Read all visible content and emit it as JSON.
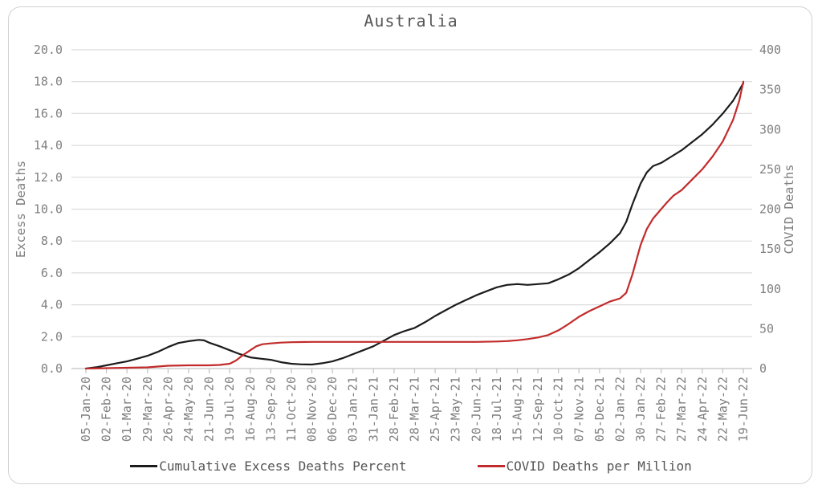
{
  "chart_data": {
    "type": "line",
    "title": "Australia",
    "categories": [
      "05-Jan-20",
      "02-Feb-20",
      "01-Mar-20",
      "29-Mar-20",
      "26-Apr-20",
      "24-May-20",
      "21-Jun-20",
      "19-Jul-20",
      "16-Aug-20",
      "13-Sep-20",
      "11-Oct-20",
      "08-Nov-20",
      "06-Dec-20",
      "03-Jan-21",
      "31-Jan-21",
      "28-Feb-21",
      "28-Mar-21",
      "25-Apr-21",
      "23-May-21",
      "20-Jun-21",
      "18-Jul-21",
      "15-Aug-21",
      "12-Sep-21",
      "10-Oct-21",
      "07-Nov-21",
      "05-Dec-21",
      "02-Jan-22",
      "30-Jan-22",
      "27-Feb-22",
      "27-Mar-22",
      "24-Apr-22",
      "22-May-22",
      "19-Jun-22"
    ],
    "x_tick_rotation": -90,
    "grid": true,
    "legend_position": "bottom",
    "left_axis": {
      "label": "Excess Deaths",
      "lim": [
        0,
        20
      ],
      "tick_values": [
        0,
        2,
        4,
        6,
        8,
        10,
        12,
        14,
        16,
        18,
        20
      ],
      "tick_labels": [
        "0.0",
        "2.0",
        "4.0",
        "6.0",
        "8.0",
        "10.0",
        "12.0",
        "14.0",
        "16.0",
        "18.0",
        "20.0"
      ]
    },
    "right_axis": {
      "label": "COVID Deaths",
      "lim": [
        0,
        400
      ],
      "tick_values": [
        0,
        50,
        100,
        150,
        200,
        250,
        300,
        350,
        400
      ],
      "tick_labels": [
        "0",
        "50",
        "100",
        "150",
        "200",
        "250",
        "300",
        "350",
        "400"
      ]
    },
    "series": [
      {
        "name": "Cumulative Excess Deaths Percent",
        "key": "cumulative-excess-deaths-percent",
        "axis": "left",
        "color": "#1c1c1c",
        "points": [
          [
            0,
            0
          ],
          [
            0.5,
            0.08
          ],
          [
            1,
            0.2
          ],
          [
            1.5,
            0.33
          ],
          [
            2,
            0.45
          ],
          [
            2.5,
            0.62
          ],
          [
            3,
            0.8
          ],
          [
            3.5,
            1.05
          ],
          [
            4,
            1.35
          ],
          [
            4.5,
            1.6
          ],
          [
            5,
            1.72
          ],
          [
            5.5,
            1.8
          ],
          [
            5.75,
            1.77
          ],
          [
            6,
            1.62
          ],
          [
            6.5,
            1.4
          ],
          [
            7,
            1.15
          ],
          [
            7.5,
            0.9
          ],
          [
            8,
            0.7
          ],
          [
            8.5,
            0.62
          ],
          [
            9,
            0.55
          ],
          [
            9.5,
            0.4
          ],
          [
            10,
            0.3
          ],
          [
            10.5,
            0.26
          ],
          [
            11,
            0.25
          ],
          [
            11.5,
            0.33
          ],
          [
            12,
            0.45
          ],
          [
            12.5,
            0.65
          ],
          [
            13,
            0.9
          ],
          [
            13.5,
            1.15
          ],
          [
            14,
            1.4
          ],
          [
            14.5,
            1.75
          ],
          [
            15,
            2.1
          ],
          [
            15.5,
            2.35
          ],
          [
            16,
            2.55
          ],
          [
            16.5,
            2.9
          ],
          [
            17,
            3.3
          ],
          [
            17.5,
            3.65
          ],
          [
            18,
            4
          ],
          [
            18.5,
            4.3
          ],
          [
            19,
            4.6
          ],
          [
            19.5,
            4.85
          ],
          [
            20,
            5.1
          ],
          [
            20.5,
            5.25
          ],
          [
            21,
            5.3
          ],
          [
            21.5,
            5.25
          ],
          [
            22,
            5.3
          ],
          [
            22.5,
            5.35
          ],
          [
            23,
            5.6
          ],
          [
            23.5,
            5.9
          ],
          [
            24,
            6.3
          ],
          [
            24.5,
            6.8
          ],
          [
            25,
            7.3
          ],
          [
            25.5,
            7.85
          ],
          [
            26,
            8.5
          ],
          [
            26.3,
            9.2
          ],
          [
            26.6,
            10.3
          ],
          [
            27,
            11.6
          ],
          [
            27.3,
            12.3
          ],
          [
            27.6,
            12.7
          ],
          [
            28,
            12.9
          ],
          [
            28.5,
            13.3
          ],
          [
            29,
            13.7
          ],
          [
            29.5,
            14.2
          ],
          [
            30,
            14.7
          ],
          [
            30.5,
            15.3
          ],
          [
            31,
            16
          ],
          [
            31.5,
            16.8
          ],
          [
            32,
            17.9
          ]
        ]
      },
      {
        "name": "COVID Deaths per Million",
        "key": "covid-deaths-per-million",
        "axis": "right",
        "color": "#c22b2b",
        "points": [
          [
            0,
            0
          ],
          [
            1,
            0.5
          ],
          [
            2,
            1
          ],
          [
            3,
            1.5
          ],
          [
            3.5,
            2.5
          ],
          [
            4,
            3.5
          ],
          [
            5,
            4
          ],
          [
            6,
            4
          ],
          [
            6.5,
            4.5
          ],
          [
            7,
            6
          ],
          [
            7.3,
            10
          ],
          [
            7.6,
            16
          ],
          [
            8,
            23
          ],
          [
            8.3,
            28
          ],
          [
            8.6,
            30.5
          ],
          [
            9,
            31.5
          ],
          [
            9.5,
            32.5
          ],
          [
            10,
            33
          ],
          [
            11,
            33.5
          ],
          [
            12,
            33.5
          ],
          [
            13,
            33.5
          ],
          [
            14,
            33.5
          ],
          [
            15,
            33.5
          ],
          [
            16,
            33.5
          ],
          [
            17,
            33.5
          ],
          [
            18,
            33.5
          ],
          [
            19,
            33.5
          ],
          [
            20,
            34
          ],
          [
            20.5,
            34.5
          ],
          [
            21,
            35.5
          ],
          [
            21.5,
            37
          ],
          [
            22,
            39
          ],
          [
            22.5,
            42
          ],
          [
            23,
            48
          ],
          [
            23.5,
            56
          ],
          [
            24,
            65
          ],
          [
            24.5,
            72
          ],
          [
            25,
            78
          ],
          [
            25.5,
            84
          ],
          [
            26,
            88
          ],
          [
            26.3,
            95
          ],
          [
            26.6,
            118
          ],
          [
            27,
            155
          ],
          [
            27.3,
            175
          ],
          [
            27.6,
            188
          ],
          [
            28,
            200
          ],
          [
            28.3,
            209
          ],
          [
            28.6,
            217
          ],
          [
            29,
            224
          ],
          [
            29.5,
            237
          ],
          [
            30,
            250
          ],
          [
            30.5,
            266
          ],
          [
            31,
            285
          ],
          [
            31.5,
            312
          ],
          [
            31.8,
            336
          ],
          [
            32,
            360
          ]
        ]
      }
    ],
    "colors": {
      "grid": "#dcdcdc",
      "axis": "#c2c2c2",
      "tick_text": "#7f7f7f",
      "axis_title_text": "#6e6e6e",
      "title_text": "#565656",
      "legend_text": "#545454",
      "card_border": "#d2d2d2",
      "background": "#ffffff"
    }
  }
}
